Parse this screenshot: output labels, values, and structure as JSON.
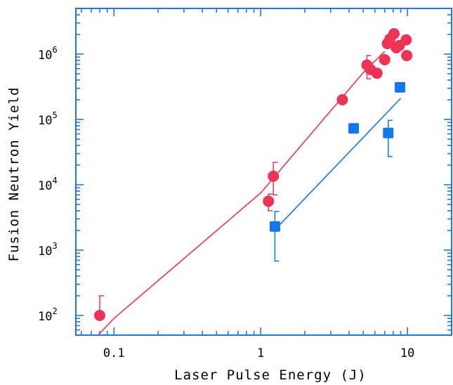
{
  "chart_data": {
    "type": "scatter",
    "title": "",
    "xlabel": "Laser Pulse Energy (J)",
    "ylabel": "Fusion Neutron Yield",
    "x_scale": "log",
    "y_scale": "log",
    "xlim": [
      0.055,
      20
    ],
    "ylim": [
      50,
      5000000
    ],
    "grid": false,
    "legend": "none",
    "x_ticks": [
      {
        "value": 0.1,
        "label": "0.1"
      },
      {
        "value": 1,
        "label": "1"
      },
      {
        "value": 10,
        "label": "10"
      }
    ],
    "y_ticks": [
      {
        "value": 100,
        "base": "10",
        "exp": "2"
      },
      {
        "value": 1000,
        "base": "10",
        "exp": "3"
      },
      {
        "value": 10000,
        "base": "10",
        "exp": "4"
      },
      {
        "value": 100000,
        "base": "10",
        "exp": "5"
      },
      {
        "value": 1000000,
        "base": "10",
        "exp": "6"
      }
    ],
    "colors": {
      "red": "#ee3355",
      "blue": "#1177ee",
      "axis": "#2277dd"
    },
    "series": [
      {
        "marker": "circle",
        "color": "#ee3355",
        "points": [
          {
            "x": 0.08,
            "y": 100,
            "err_hi": 200
          },
          {
            "x": 1.13,
            "y": 5600,
            "err_lo": 4000,
            "err_hi": 7200
          },
          {
            "x": 1.22,
            "y": 13500,
            "err_lo": 7000,
            "err_hi": 22000
          },
          {
            "x": 3.6,
            "y": 200000
          },
          {
            "x": 5.3,
            "y": 680000,
            "err_lo": 420000,
            "err_hi": 950000
          },
          {
            "x": 5.6,
            "y": 580000
          },
          {
            "x": 6.2,
            "y": 510000
          },
          {
            "x": 7.0,
            "y": 820000
          },
          {
            "x": 7.3,
            "y": 1450000
          },
          {
            "x": 7.6,
            "y": 1700000
          },
          {
            "x": 8.1,
            "y": 2050000
          },
          {
            "x": 8.4,
            "y": 1250000
          },
          {
            "x": 8.8,
            "y": 1350000
          },
          {
            "x": 9.8,
            "y": 1650000
          },
          {
            "x": 9.9,
            "y": 950000
          }
        ],
        "fit": [
          [
            0.078,
            50
          ],
          [
            0.1,
            90
          ],
          [
            1,
            7500
          ],
          [
            5,
            520000
          ],
          [
            7,
            1100000
          ]
        ]
      },
      {
        "marker": "square",
        "color": "#1177ee",
        "points": [
          {
            "x": 1.25,
            "y": 2300,
            "err_lo": 680,
            "err_hi": 3900
          },
          {
            "x": 4.3,
            "y": 73000,
            "err_lo": 68000,
            "err_hi": 78000
          },
          {
            "x": 7.4,
            "y": 62000,
            "err_lo": 27000,
            "err_hi": 97000
          },
          {
            "x": 8.9,
            "y": 310000
          }
        ],
        "fit": [
          [
            1.35,
            2450
          ],
          [
            9.0,
            210000
          ]
        ]
      }
    ]
  }
}
